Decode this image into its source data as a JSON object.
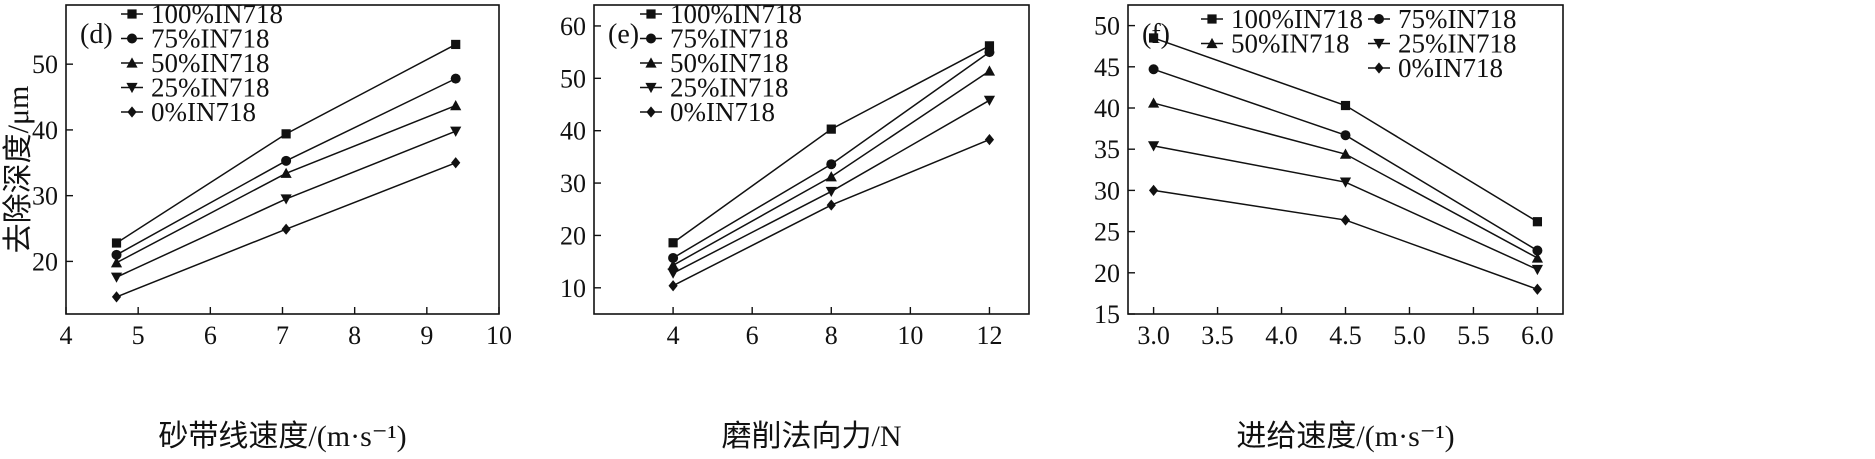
{
  "chart_data": [
    {
      "type": "line",
      "panel_label": "(d)",
      "xlabel": "砂带线速度/(m·s⁻¹)",
      "ylabel": "去除深度/μm",
      "xlim": [
        4,
        10
      ],
      "ylim": [
        12,
        59
      ],
      "xticks": [
        4,
        5,
        6,
        7,
        8,
        9,
        10
      ],
      "yticks": [
        20,
        30,
        40,
        50
      ],
      "legend_position": "top-left",
      "legend_columns": 1,
      "grid": false,
      "x": [
        4.7,
        7.05,
        9.4
      ],
      "series": [
        {
          "name": "100%IN718",
          "marker": "square",
          "values": [
            22.8,
            39.4,
            53.0
          ]
        },
        {
          "name": "75%IN718",
          "marker": "circle",
          "values": [
            21.0,
            35.3,
            47.8
          ]
        },
        {
          "name": "50%IN718",
          "marker": "triangle-up",
          "values": [
            19.8,
            33.4,
            43.7
          ]
        },
        {
          "name": "25%IN718",
          "marker": "triangle-down",
          "values": [
            17.6,
            29.5,
            39.8
          ]
        },
        {
          "name": "0%IN718",
          "marker": "diamond",
          "values": [
            14.6,
            24.9,
            35.0
          ]
        }
      ]
    },
    {
      "type": "line",
      "panel_label": "(e)",
      "xlabel": "磨削法向力/N",
      "ylabel": "",
      "xlim": [
        2,
        13
      ],
      "ylim": [
        5,
        64
      ],
      "xticks": [
        4,
        6,
        8,
        10,
        12
      ],
      "yticks": [
        10,
        20,
        30,
        40,
        50,
        60
      ],
      "legend_position": "top-left",
      "legend_columns": 1,
      "grid": false,
      "x": [
        4,
        8,
        12
      ],
      "series": [
        {
          "name": "100%IN718",
          "marker": "square",
          "values": [
            18.6,
            40.3,
            56.2
          ]
        },
        {
          "name": "75%IN718",
          "marker": "circle",
          "values": [
            15.7,
            33.6,
            55.0
          ]
        },
        {
          "name": "50%IN718",
          "marker": "triangle-up",
          "values": [
            14.3,
            31.2,
            51.4
          ]
        },
        {
          "name": "25%IN718",
          "marker": "triangle-down",
          "values": [
            12.8,
            28.4,
            45.8
          ]
        },
        {
          "name": "0%IN718",
          "marker": "diamond",
          "values": [
            10.4,
            25.8,
            38.3
          ]
        }
      ]
    },
    {
      "type": "line",
      "panel_label": "(f)",
      "xlabel": "进给速度/(m·s⁻¹)",
      "ylabel": "",
      "xlim": [
        2.8,
        6.2
      ],
      "ylim": [
        15,
        52.5
      ],
      "xticks": [
        3.0,
        3.5,
        4.0,
        4.5,
        5.0,
        5.5,
        6.0
      ],
      "xtick_labels": [
        "3.0",
        "3.5",
        "4.0",
        "4.5",
        "5.0",
        "5.5",
        "6.0"
      ],
      "yticks": [
        15,
        20,
        25,
        30,
        35,
        40,
        45,
        50
      ],
      "legend_position": "top",
      "legend_columns": 2,
      "grid": false,
      "x": [
        3.0,
        4.5,
        6.0
      ],
      "series": [
        {
          "name": "100%IN718",
          "marker": "square",
          "values": [
            48.5,
            40.3,
            26.2
          ]
        },
        {
          "name": "75%IN718",
          "marker": "circle",
          "values": [
            44.7,
            36.7,
            22.7
          ]
        },
        {
          "name": "50%IN718",
          "marker": "triangle-up",
          "values": [
            40.6,
            34.4,
            21.8
          ]
        },
        {
          "name": "25%IN718",
          "marker": "triangle-down",
          "values": [
            35.4,
            31.0,
            20.4
          ]
        },
        {
          "name": "0%IN718",
          "marker": "diamond",
          "values": [
            30.0,
            26.4,
            18.0
          ]
        }
      ]
    }
  ]
}
